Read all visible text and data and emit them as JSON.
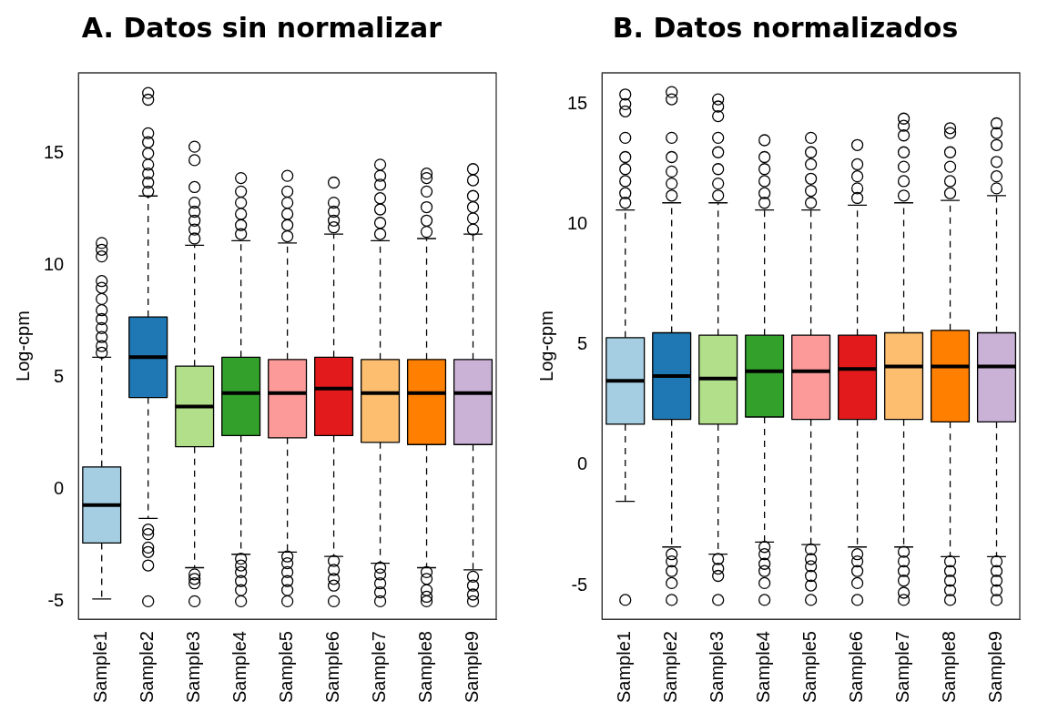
{
  "chart_data": [
    {
      "type": "box",
      "title": "A. Datos sin normalizar",
      "ylabel": "Log-cpm",
      "categories": [
        "Sample1",
        "Sample2",
        "Sample3",
        "Sample4",
        "Sample5",
        "Sample6",
        "Sample7",
        "Sample8",
        "Sample9"
      ],
      "colors": [
        "#a6cee3",
        "#1f78b4",
        "#b2df8a",
        "#33a02c",
        "#fb9a99",
        "#e31a1c",
        "#fdbf6f",
        "#ff7f00",
        "#cab2d6"
      ],
      "boxes": [
        {
          "low": -4.9,
          "q1": -2.4,
          "median": -0.7,
          "q3": 1.0,
          "high": 5.9,
          "outliers": [
            6.1,
            6.4,
            6.8,
            7.2,
            7.6,
            8.0,
            8.5,
            9.0,
            9.3,
            10.4,
            10.7,
            11.0
          ]
        },
        {
          "low": -1.3,
          "q1": 4.1,
          "median": 5.9,
          "q3": 7.7,
          "high": 13.1,
          "outliers": [
            -1.8,
            -2.0,
            -2.6,
            -2.8,
            -3.4,
            -5.0,
            13.3,
            13.7,
            14.1,
            14.5,
            15.0,
            15.5,
            15.9,
            17.4,
            17.7
          ]
        },
        {
          "low": -3.5,
          "q1": 1.9,
          "median": 3.7,
          "q3": 5.5,
          "high": 10.9,
          "outliers": [
            -3.8,
            -4.0,
            -4.2,
            -5.0,
            11.2,
            11.6,
            12.0,
            12.4,
            12.8,
            13.5,
            14.7,
            15.3
          ]
        },
        {
          "low": -2.9,
          "q1": 2.4,
          "median": 4.3,
          "q3": 5.9,
          "high": 11.1,
          "outliers": [
            -3.1,
            -3.4,
            -3.7,
            -4.1,
            -4.5,
            -5.0,
            11.4,
            11.8,
            12.3,
            12.8,
            13.3,
            13.9
          ]
        },
        {
          "low": -2.8,
          "q1": 2.3,
          "median": 4.3,
          "q3": 5.8,
          "high": 11.0,
          "outliers": [
            -3.0,
            -3.3,
            -3.7,
            -4.1,
            -4.5,
            -5.0,
            11.3,
            11.8,
            12.3,
            12.8,
            13.3,
            14.0
          ]
        },
        {
          "low": -3.0,
          "q1": 2.4,
          "median": 4.5,
          "q3": 5.9,
          "high": 11.4,
          "outliers": [
            -3.2,
            -3.6,
            -4.0,
            -4.3,
            -5.0,
            11.7,
            12.0,
            12.4,
            12.8,
            13.7
          ]
        },
        {
          "low": -3.3,
          "q1": 2.1,
          "median": 4.3,
          "q3": 5.8,
          "high": 11.1,
          "outliers": [
            -3.5,
            -3.8,
            -4.2,
            -4.6,
            -5.0,
            11.4,
            11.9,
            12.5,
            13.0,
            13.6,
            14.0,
            14.5
          ]
        },
        {
          "low": -3.5,
          "q1": 2.0,
          "median": 4.3,
          "q3": 5.8,
          "high": 11.2,
          "outliers": [
            -3.7,
            -4.0,
            -4.5,
            -4.8,
            -5.0,
            11.5,
            12.0,
            12.6,
            13.3,
            13.9,
            14.1
          ]
        },
        {
          "low": -3.6,
          "q1": 2.0,
          "median": 4.3,
          "q3": 5.8,
          "high": 11.4,
          "outliers": [
            -3.9,
            -4.3,
            -4.7,
            -5.0,
            11.6,
            12.1,
            12.6,
            13.1,
            13.8,
            14.3
          ]
        }
      ],
      "ylim": [
        -5.8,
        18.6
      ],
      "yticks": [
        -5,
        0,
        5,
        10,
        15
      ],
      "grid": false
    },
    {
      "type": "box",
      "title": "B. Datos normalizados",
      "ylabel": "Log-cpm",
      "categories": [
        "Sample1",
        "Sample2",
        "Sample3",
        "Sample4",
        "Sample5",
        "Sample6",
        "Sample7",
        "Sample8",
        "Sample9"
      ],
      "colors": [
        "#a6cee3",
        "#1f78b4",
        "#b2df8a",
        "#33a02c",
        "#fb9a99",
        "#e31a1c",
        "#fdbf6f",
        "#ff7f00",
        "#cab2d6"
      ],
      "boxes": [
        {
          "low": -1.5,
          "q1": 1.7,
          "median": 3.5,
          "q3": 5.3,
          "high": 10.6,
          "outliers": [
            -5.6,
            10.9,
            11.3,
            11.8,
            12.3,
            12.8,
            13.6,
            14.7,
            15.0,
            15.4
          ]
        },
        {
          "low": -3.4,
          "q1": 1.9,
          "median": 3.7,
          "q3": 5.5,
          "high": 10.9,
          "outliers": [
            -3.7,
            -4.0,
            -4.4,
            -4.9,
            -5.6,
            11.2,
            11.7,
            12.2,
            12.8,
            13.6,
            15.2,
            15.5
          ]
        },
        {
          "low": -3.7,
          "q1": 1.7,
          "median": 3.6,
          "q3": 5.4,
          "high": 10.9,
          "outliers": [
            -3.9,
            -4.3,
            -4.6,
            -5.6,
            11.2,
            11.7,
            12.3,
            13.0,
            13.6,
            14.5,
            14.9,
            15.2
          ]
        },
        {
          "low": -3.2,
          "q1": 2.0,
          "median": 3.9,
          "q3": 5.4,
          "high": 10.6,
          "outliers": [
            -3.4,
            -3.7,
            -4.1,
            -4.4,
            -4.9,
            -5.6,
            10.9,
            11.3,
            11.8,
            12.3,
            12.8,
            13.5
          ]
        },
        {
          "low": -3.3,
          "q1": 1.9,
          "median": 3.9,
          "q3": 5.4,
          "high": 10.6,
          "outliers": [
            -3.5,
            -3.9,
            -4.2,
            -4.6,
            -5.0,
            -5.6,
            10.9,
            11.4,
            11.9,
            12.5,
            13.0,
            13.6
          ]
        },
        {
          "low": -3.4,
          "q1": 1.9,
          "median": 4.0,
          "q3": 5.4,
          "high": 10.8,
          "outliers": [
            -3.7,
            -4.0,
            -4.4,
            -4.9,
            -5.6,
            11.1,
            11.5,
            12.0,
            12.5,
            13.3
          ]
        },
        {
          "low": -3.4,
          "q1": 1.9,
          "median": 4.1,
          "q3": 5.5,
          "high": 10.9,
          "outliers": [
            -3.6,
            -4.0,
            -4.4,
            -4.8,
            -5.3,
            -5.6,
            11.2,
            11.8,
            12.4,
            13.0,
            13.7,
            14.1,
            14.4
          ]
        },
        {
          "low": -3.8,
          "q1": 1.8,
          "median": 4.1,
          "q3": 5.6,
          "high": 11.0,
          "outliers": [
            -4.0,
            -4.4,
            -4.8,
            -5.2,
            -5.6,
            11.3,
            11.8,
            12.4,
            13.0,
            13.8,
            14.0
          ]
        },
        {
          "low": -3.8,
          "q1": 1.8,
          "median": 4.1,
          "q3": 5.5,
          "high": 11.2,
          "outliers": [
            -4.0,
            -4.4,
            -4.8,
            -5.2,
            -5.6,
            11.5,
            12.0,
            12.6,
            13.3,
            13.8,
            14.2
          ]
        }
      ],
      "ylim": [
        -6.4,
        16.3
      ],
      "yticks": [
        -5,
        0,
        5,
        10,
        15
      ],
      "grid": false
    }
  ]
}
